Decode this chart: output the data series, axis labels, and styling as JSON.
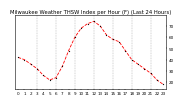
{
  "title": "Milwaukee Weather THSW Index per Hour (F) (Last 24 Hours)",
  "background_color": "#ffffff",
  "plot_bg_color": "#ffffff",
  "line_color": "#ff0000",
  "line_style": "--",
  "marker": ".",
  "marker_color": "#000000",
  "grid_color": "#888888",
  "grid_style": "--",
  "hours": [
    0,
    1,
    2,
    3,
    4,
    5,
    6,
    7,
    8,
    9,
    10,
    11,
    12,
    13,
    14,
    15,
    16,
    17,
    18,
    19,
    20,
    21,
    22,
    23
  ],
  "values": [
    42,
    40,
    36,
    32,
    26,
    22,
    24,
    34,
    48,
    60,
    68,
    72,
    74,
    70,
    62,
    58,
    56,
    48,
    40,
    36,
    32,
    28,
    22,
    18
  ],
  "ylim": [
    14,
    80
  ],
  "yticks": [
    20,
    30,
    40,
    50,
    60,
    70
  ],
  "ytick_labels": [
    "20",
    "30",
    "40",
    "50",
    "60",
    "70"
  ],
  "xtick_hours": [
    0,
    1,
    2,
    3,
    4,
    5,
    6,
    7,
    8,
    9,
    10,
    11,
    12,
    13,
    14,
    15,
    16,
    17,
    18,
    19,
    20,
    21,
    22,
    23
  ],
  "title_fontsize": 3.8,
  "tick_fontsize": 3.0,
  "vline_hours": [
    3,
    6,
    9,
    12,
    15,
    18,
    21
  ],
  "linewidth": 0.6,
  "markersize": 1.2
}
